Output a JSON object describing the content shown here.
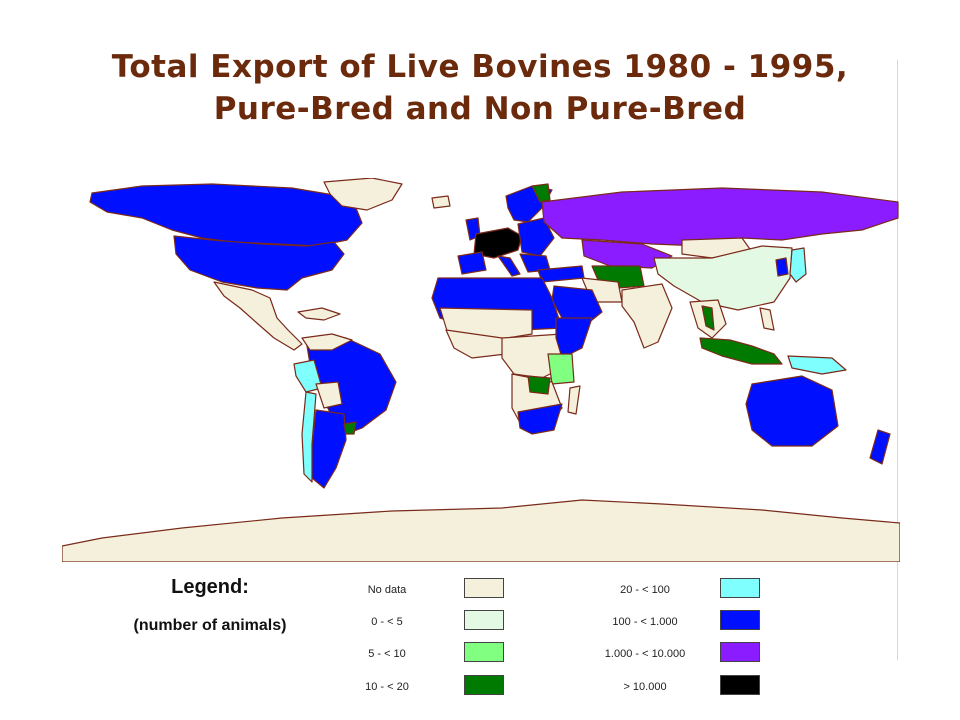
{
  "title_line1": "Total Export of Live Bovines 1980 - 1995,",
  "title_line2": "Pure-Bred and Non Pure-Bred",
  "legend": {
    "title": "Legend:",
    "subtitle": "(number of animals)",
    "items": [
      {
        "label": "No data",
        "color": "#f5f0dc"
      },
      {
        "label": "0 - < 5",
        "color": "#e4f9e4"
      },
      {
        "label": "5 - < 10",
        "color": "#80ff80"
      },
      {
        "label": "10 - < 20",
        "color": "#007a00"
      },
      {
        "label": "20 - < 100",
        "color": "#80ffff"
      },
      {
        "label": "100 - < 1.000",
        "color": "#0010ff"
      },
      {
        "label": "1.000 - < 10.000",
        "color": "#8a1cff"
      },
      {
        "label": "> 10.000",
        "color": "#000000"
      }
    ]
  },
  "colors": {
    "border": "#7a2a1a",
    "title": "#6b2a0c",
    "ocean": "#ffffff"
  }
}
